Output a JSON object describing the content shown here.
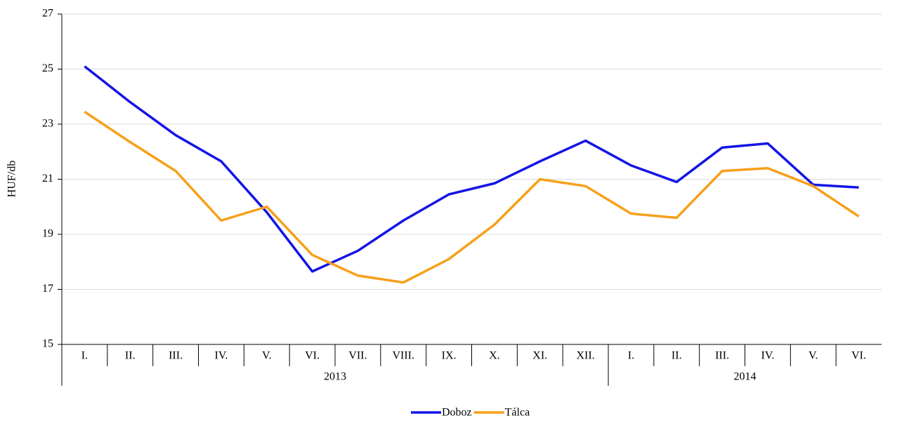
{
  "chart_data": {
    "type": "line",
    "y_label": "HUF/db",
    "groups": [
      {
        "label": "2013",
        "categories": [
          "I.",
          "II.",
          "III.",
          "IV.",
          "V.",
          "VI.",
          "VII.",
          "VIII.",
          "IX.",
          "X.",
          "XI.",
          "XII."
        ]
      },
      {
        "label": "2014",
        "categories": [
          "I.",
          "II.",
          "III.",
          "IV.",
          "V.",
          "VI."
        ]
      }
    ],
    "series": [
      {
        "name": "Doboz",
        "color": "#1414e6",
        "values": [
          25.1,
          23.8,
          22.6,
          21.65,
          19.8,
          17.65,
          18.4,
          19.5,
          20.45,
          20.85,
          21.65,
          22.4,
          21.5,
          20.9,
          22.15,
          22.3,
          20.8,
          20.7
        ]
      },
      {
        "name": "Tálca",
        "color": "#f7a01a",
        "values": [
          23.45,
          22.35,
          21.3,
          19.5,
          20.0,
          18.25,
          17.5,
          17.25,
          18.1,
          19.35,
          21.0,
          20.75,
          19.75,
          19.6,
          21.3,
          21.4,
          20.75,
          19.65
        ]
      }
    ],
    "ylim": [
      15,
      27
    ],
    "yticks": [
      15,
      17,
      19,
      21,
      23,
      25,
      27
    ],
    "grid": true,
    "legend": "bottom"
  }
}
